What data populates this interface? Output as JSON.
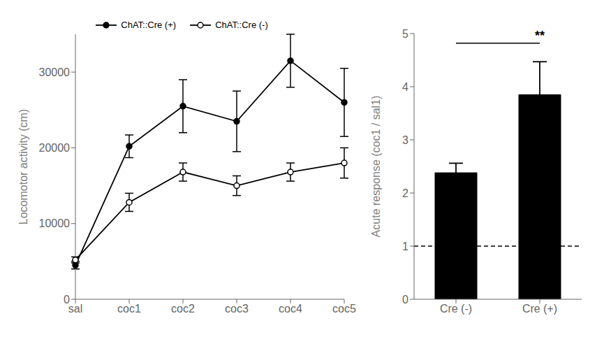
{
  "chart_data": [
    {
      "type": "line",
      "categories": [
        "sal",
        "coc1",
        "coc2",
        "coc3",
        "coc4",
        "coc5"
      ],
      "series": [
        {
          "name": "ChAT::Cre (+)",
          "color": "#000000",
          "marker": "circle",
          "line_style": "solid",
          "values": [
            4500,
            20200,
            25500,
            23500,
            31500,
            26000
          ],
          "errors": [
            500,
            1500,
            3500,
            4000,
            3500,
            4500
          ]
        },
        {
          "name": "ChAT::Cre (-)",
          "color": "#000000",
          "marker": "open_circle",
          "line_style": "solid",
          "values": [
            5200,
            12800,
            16800,
            15000,
            16800,
            18000
          ],
          "errors": [
            400,
            1200,
            1200,
            1300,
            1200,
            2000
          ]
        }
      ],
      "y_label": "Locomotor activity (cm)",
      "ylim": [
        0,
        35000
      ],
      "yticks": [
        0,
        10000,
        20000,
        30000
      ],
      "legend": "top"
    },
    {
      "type": "bar",
      "categories": [
        "Cre (-)",
        "Cre (+)"
      ],
      "values": [
        2.38,
        3.85
      ],
      "errors": [
        0.18,
        0.62
      ],
      "color": "#000000",
      "y_label": "Acute response (coc1 / sal1)",
      "ylim": [
        0,
        5
      ],
      "yticks": [
        0,
        1,
        2,
        3,
        4,
        5
      ],
      "reference_y": 1.0,
      "reference_color": "#000000",
      "reference_line_style": "dashed",
      "significance": {
        "label": "**",
        "y": 4.82,
        "from": "Cre (-)",
        "to": "Cre (+)",
        "color": "#000000"
      }
    }
  ]
}
